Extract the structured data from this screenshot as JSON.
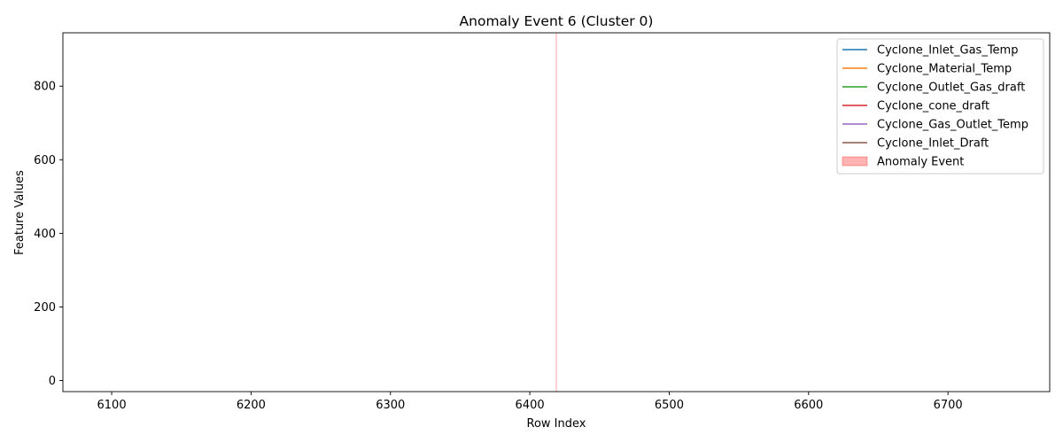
{
  "chart_data": {
    "type": "line",
    "title": "Anomaly Event 6 (Cluster 0)",
    "xlabel": "Row Index",
    "ylabel": "Feature Values",
    "xlim": [
      6065,
      6773
    ],
    "ylim": [
      -30,
      945
    ],
    "xticks": [
      6100,
      6200,
      6300,
      6400,
      6500,
      6600,
      6700
    ],
    "yticks": [
      0,
      200,
      400,
      600,
      800
    ],
    "grid": false,
    "legend_position": "top-right",
    "series": [
      {
        "name": "Cyclone_Inlet_Gas_Temp",
        "color": "#1f77b4",
        "points": []
      },
      {
        "name": "Cyclone_Material_Temp",
        "color": "#ff7f0e",
        "points": []
      },
      {
        "name": "Cyclone_Outlet_Gas_draft",
        "color": "#2ca02c",
        "points": []
      },
      {
        "name": "Cyclone_cone_draft",
        "color": "#d62728",
        "points": []
      },
      {
        "name": "Cyclone_Gas_Outlet_Temp",
        "color": "#9467bd",
        "points": []
      },
      {
        "name": "Cyclone_Inlet_Draft",
        "color": "#8c564b",
        "points": []
      }
    ],
    "anomaly_event": {
      "name": "Anomaly Event",
      "color": "#ff0000",
      "opacity": 0.3,
      "x_start": 6419,
      "x_end": 6419
    }
  }
}
